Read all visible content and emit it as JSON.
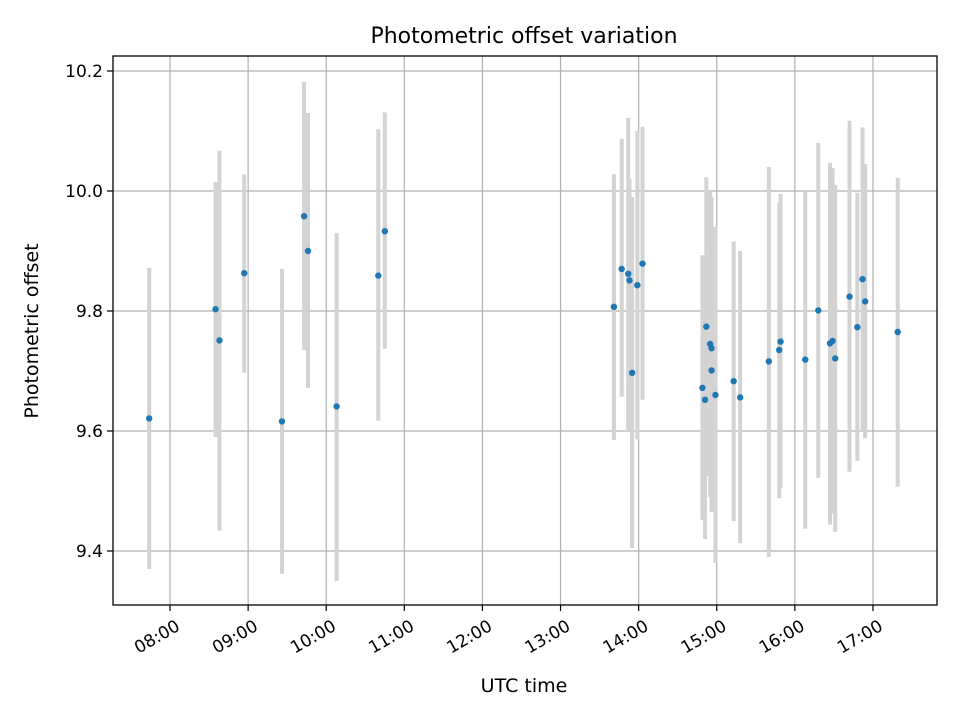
{
  "chart_data": {
    "type": "scatter",
    "title": "Photometric offset variation",
    "xlabel": "UTC time",
    "ylabel": "Photometric offset",
    "x_tick_labels": [
      "08:00",
      "09:00",
      "10:00",
      "11:00",
      "12:00",
      "13:00",
      "14:00",
      "15:00",
      "16:00",
      "17:00"
    ],
    "x_ticks_hours": [
      8,
      9,
      10,
      11,
      12,
      13,
      14,
      15,
      16,
      17
    ],
    "y_tick_labels": [
      "9.4",
      "9.6",
      "9.8",
      "10.0",
      "10.2"
    ],
    "y_ticks": [
      9.4,
      9.6,
      9.8,
      10.0,
      10.2
    ],
    "xlim_hours": [
      7.27,
      17.82
    ],
    "ylim": [
      9.31,
      10.225
    ],
    "grid": true,
    "point_color": "#1f77b4",
    "errorbar_color": "#d3d3d3",
    "points": [
      {
        "t": "07:44",
        "y": 9.621,
        "err_lo": 9.37,
        "err_hi": 9.872
      },
      {
        "t": "08:35",
        "y": 9.803,
        "err_lo": 9.59,
        "err_hi": 10.015
      },
      {
        "t": "08:38",
        "y": 9.751,
        "err_lo": 9.434,
        "err_hi": 10.067
      },
      {
        "t": "08:57",
        "y": 9.863,
        "err_lo": 9.697,
        "err_hi": 10.028
      },
      {
        "t": "09:26",
        "y": 9.616,
        "err_lo": 9.362,
        "err_hi": 9.87
      },
      {
        "t": "09:43",
        "y": 9.958,
        "err_lo": 9.735,
        "err_hi": 10.182
      },
      {
        "t": "09:46",
        "y": 9.9,
        "err_lo": 9.672,
        "err_hi": 10.13
      },
      {
        "t": "10:08",
        "y": 9.641,
        "err_lo": 9.35,
        "err_hi": 9.93
      },
      {
        "t": "10:40",
        "y": 9.859,
        "err_lo": 9.617,
        "err_hi": 10.103
      },
      {
        "t": "10:45",
        "y": 9.933,
        "err_lo": 9.737,
        "err_hi": 10.131
      },
      {
        "t": "13:41",
        "y": 9.807,
        "err_lo": 9.585,
        "err_hi": 10.028
      },
      {
        "t": "13:47",
        "y": 9.87,
        "err_lo": 9.657,
        "err_hi": 10.087
      },
      {
        "t": "13:52",
        "y": 9.862,
        "err_lo": 9.6,
        "err_hi": 10.122
      },
      {
        "t": "13:53",
        "y": 9.851,
        "err_lo": 9.68,
        "err_hi": 10.02
      },
      {
        "t": "13:55",
        "y": 9.697,
        "err_lo": 9.405,
        "err_hi": 9.99
      },
      {
        "t": "13:59",
        "y": 9.843,
        "err_lo": 9.586,
        "err_hi": 10.1
      },
      {
        "t": "14:03",
        "y": 9.879,
        "err_lo": 9.652,
        "err_hi": 10.107
      },
      {
        "t": "14:49",
        "y": 9.672,
        "err_lo": 9.452,
        "err_hi": 9.893
      },
      {
        "t": "14:51",
        "y": 9.652,
        "err_lo": 9.42,
        "err_hi": 9.89
      },
      {
        "t": "14:52",
        "y": 9.774,
        "err_lo": 9.525,
        "err_hi": 10.023
      },
      {
        "t": "14:55",
        "y": 9.745,
        "err_lo": 9.49,
        "err_hi": 10.0
      },
      {
        "t": "14:56",
        "y": 9.738,
        "err_lo": 9.48,
        "err_hi": 9.99
      },
      {
        "t": "14:56",
        "y": 9.701,
        "err_lo": 9.465,
        "err_hi": 9.94
      },
      {
        "t": "14:59",
        "y": 9.66,
        "err_lo": 9.38,
        "err_hi": 9.94
      },
      {
        "t": "15:13",
        "y": 9.683,
        "err_lo": 9.45,
        "err_hi": 9.916
      },
      {
        "t": "15:18",
        "y": 9.656,
        "err_lo": 9.413,
        "err_hi": 9.9
      },
      {
        "t": "15:40",
        "y": 9.716,
        "err_lo": 9.39,
        "err_hi": 10.04
      },
      {
        "t": "15:48",
        "y": 9.735,
        "err_lo": 9.488,
        "err_hi": 9.98
      },
      {
        "t": "15:49",
        "y": 9.749,
        "err_lo": 9.505,
        "err_hi": 9.995
      },
      {
        "t": "16:08",
        "y": 9.719,
        "err_lo": 9.437,
        "err_hi": 10.0
      },
      {
        "t": "16:18",
        "y": 9.801,
        "err_lo": 9.522,
        "err_hi": 10.08
      },
      {
        "t": "16:27",
        "y": 9.746,
        "err_lo": 9.444,
        "err_hi": 10.047
      },
      {
        "t": "16:29",
        "y": 9.75,
        "err_lo": 9.462,
        "err_hi": 10.038
      },
      {
        "t": "16:31",
        "y": 9.721,
        "err_lo": 9.432,
        "err_hi": 10.01
      },
      {
        "t": "16:42",
        "y": 9.824,
        "err_lo": 9.532,
        "err_hi": 10.117
      },
      {
        "t": "16:48",
        "y": 9.773,
        "err_lo": 9.55,
        "err_hi": 9.997
      },
      {
        "t": "16:52",
        "y": 9.853,
        "err_lo": 9.6,
        "err_hi": 10.106
      },
      {
        "t": "16:54",
        "y": 9.816,
        "err_lo": 9.588,
        "err_hi": 10.045
      },
      {
        "t": "17:19",
        "y": 9.765,
        "err_lo": 9.507,
        "err_hi": 10.022
      }
    ]
  }
}
